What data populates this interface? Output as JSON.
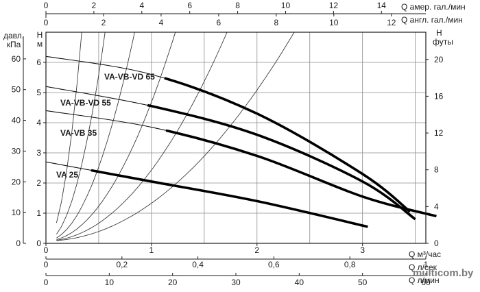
{
  "chart_data": {
    "type": "line",
    "x": [
      0,
      0.25,
      0.5,
      1,
      1.5,
      2,
      2.5,
      3,
      3.5
    ],
    "x_axis": {
      "unit": "Q м³/час",
      "ticks": [
        "0",
        "1",
        "2",
        "3"
      ],
      "range": [
        0,
        3.6
      ]
    },
    "y_axis_left_m": {
      "unit_letter": "H",
      "unit": "м",
      "ticks": [
        "0",
        "1",
        "2",
        "3",
        "4",
        "5",
        "6"
      ],
      "range": [
        0,
        7
      ]
    },
    "y_axis_left_kpa": {
      "unit_line1": "давл.",
      "unit_line2": "кПа",
      "ticks": [
        "0",
        "10",
        "20",
        "30",
        "40",
        "50",
        "60"
      ]
    },
    "y_axis_right_ft": {
      "unit_letter": "H",
      "unit": "футы",
      "ticks": [
        "0",
        "4",
        "8",
        "12",
        "16",
        "20"
      ]
    },
    "top_axis_us_gpm": {
      "unit": "Q  амер. гал./мин",
      "ticks": [
        "0",
        "2",
        "4",
        "6",
        "8",
        "10",
        "12",
        "14"
      ]
    },
    "top_axis_uk_gpm": {
      "unit": "Q  англ. гал./мин",
      "ticks": [
        "0",
        "2",
        "4",
        "6",
        "8",
        "10",
        "12"
      ]
    },
    "bottom_axis_ls": {
      "unit": "Q л/сек",
      "ticks": [
        "0",
        "0,2",
        "0,4",
        "0,6",
        "0,8",
        "1"
      ]
    },
    "bottom_axis_lmin": {
      "unit": "Q л/мин",
      "ticks": [
        "0",
        "10",
        "20",
        "30",
        "40",
        "50",
        "60"
      ]
    },
    "series": [
      {
        "name": "VA-VB-VD 65",
        "points": [
          [
            0,
            6.2
          ],
          [
            1.0,
            5.6
          ],
          [
            2.0,
            4.3
          ],
          [
            3.0,
            2.3
          ],
          [
            3.45,
            1.05
          ]
        ]
      },
      {
        "name": "VA-VB-VD 55",
        "points": [
          [
            0,
            5.2
          ],
          [
            1.0,
            4.55
          ],
          [
            2.0,
            3.6
          ],
          [
            3.0,
            2.05
          ],
          [
            3.5,
            0.8
          ]
        ]
      },
      {
        "name": "VA-VB 35",
        "points": [
          [
            0,
            4.4
          ],
          [
            1.0,
            3.85
          ],
          [
            2.0,
            2.9
          ],
          [
            3.0,
            1.55
          ],
          [
            3.7,
            0.9
          ]
        ]
      },
      {
        "name": "VA 25",
        "points": [
          [
            0,
            2.7
          ],
          [
            1.0,
            2.05
          ],
          [
            2.0,
            1.4
          ],
          [
            3.05,
            0.55
          ]
        ]
      }
    ],
    "system_curves": [
      [
        0.3,
        0.42,
        0.62,
        0.9,
        1.35,
        2.1
      ],
      [
        0.34,
        0.45,
        0.7,
        1.0,
        1.5,
        2.4
      ]
    ],
    "grid": true,
    "legend": "labels on curves"
  },
  "watermark": "multicom.by"
}
